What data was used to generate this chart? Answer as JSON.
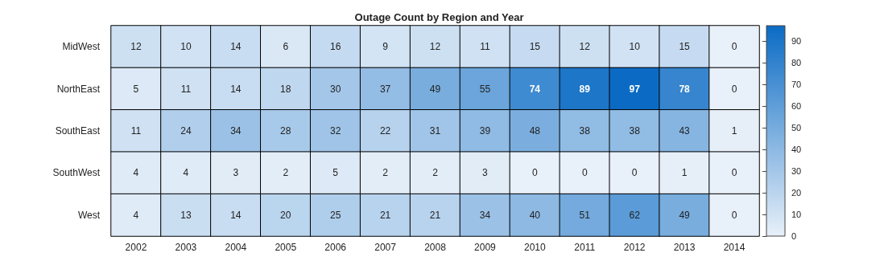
{
  "chart_data": {
    "type": "heatmap",
    "title": "Outage Count by Region and Year",
    "categories": [
      "2002",
      "2003",
      "2004",
      "2005",
      "2006",
      "2007",
      "2008",
      "2009",
      "2010",
      "2011",
      "2012",
      "2013",
      "2014"
    ],
    "y_categories": [
      "MidWest",
      "NorthEast",
      "SouthEast",
      "SouthWest",
      "West"
    ],
    "cells": [
      [
        12,
        10,
        14,
        6,
        16,
        9,
        12,
        11,
        15,
        12,
        10,
        15,
        0
      ],
      [
        5,
        11,
        14,
        18,
        30,
        37,
        49,
        55,
        74,
        89,
        97,
        78,
        0
      ],
      [
        11,
        24,
        34,
        28,
        32,
        22,
        31,
        39,
        48,
        38,
        38,
        43,
        1
      ],
      [
        4,
        4,
        3,
        2,
        5,
        2,
        2,
        3,
        0,
        0,
        0,
        1,
        0
      ],
      [
        4,
        13,
        14,
        20,
        25,
        21,
        21,
        34,
        40,
        51,
        62,
        49,
        0
      ]
    ],
    "data_labels": true,
    "clim": [
      0,
      97
    ],
    "cticks": [
      0,
      10,
      20,
      30,
      40,
      50,
      60,
      70,
      80,
      90
    ]
  }
}
